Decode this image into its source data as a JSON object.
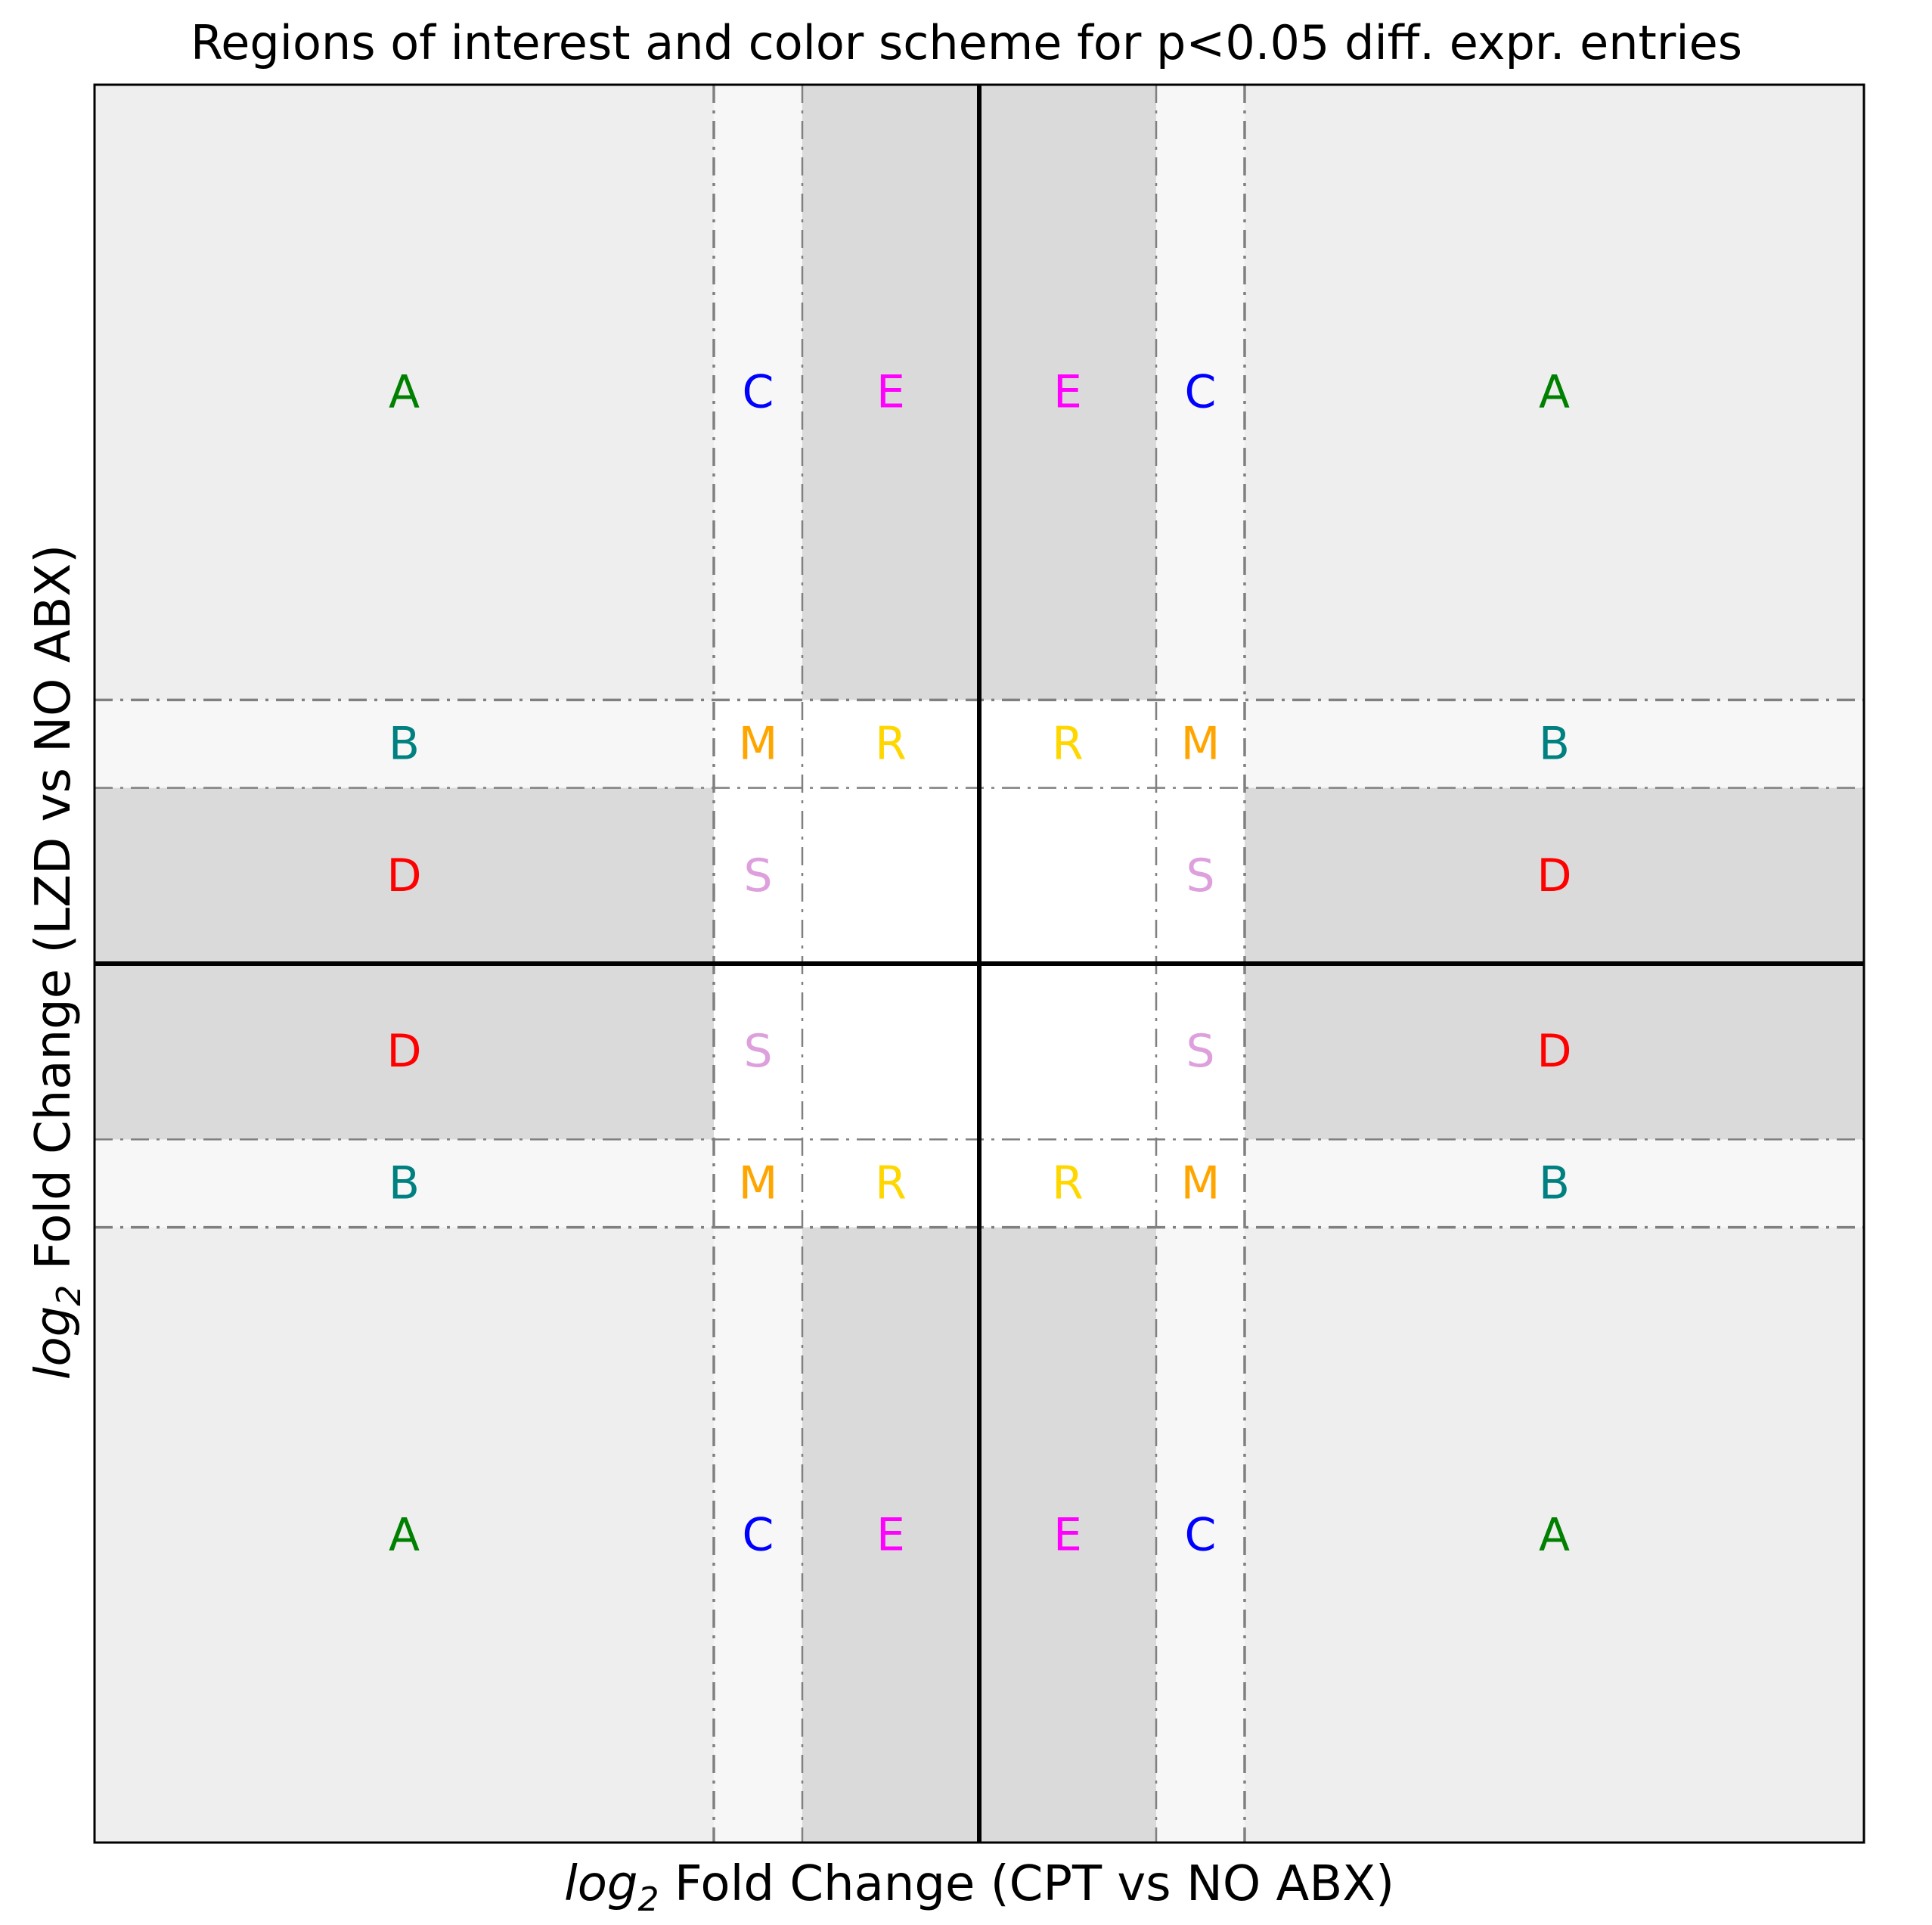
{
  "chart_data": {
    "type": "other",
    "title": "Regions of interest and color scheme for p<0.05 diff. expr. entries",
    "xlabel": {
      "prefix": "log",
      "subscript": "2",
      "suffix": " Fold Change (CPT vs NO ABX)"
    },
    "ylabel": {
      "prefix": "log",
      "subscript": "2",
      "suffix": " Fold Change (LZD vs NO ABX)"
    },
    "xlim": [
      -10,
      10
    ],
    "ylim": [
      -10,
      10
    ],
    "ticks_shown": false,
    "grid": false,
    "thresholds": [
      -3,
      -2,
      2,
      3
    ],
    "band_colors": {
      "light": "#eeeeee",
      "lighter": "#f7f7f7",
      "dark": "#dadada",
      "divider": "#808080",
      "axis": "#000000"
    },
    "regions": [
      {
        "x": [
          -10,
          -3
        ],
        "y": [
          3,
          10
        ],
        "fill": "#eeeeee"
      },
      {
        "x": [
          3,
          10
        ],
        "y": [
          3,
          10
        ],
        "fill": "#eeeeee"
      },
      {
        "x": [
          -10,
          -3
        ],
        "y": [
          -10,
          -3
        ],
        "fill": "#eeeeee"
      },
      {
        "x": [
          3,
          10
        ],
        "y": [
          -10,
          -3
        ],
        "fill": "#eeeeee"
      },
      {
        "x": [
          -3,
          -2
        ],
        "y": [
          3,
          10
        ],
        "fill": "#f7f7f7"
      },
      {
        "x": [
          2,
          3
        ],
        "y": [
          3,
          10
        ],
        "fill": "#f7f7f7"
      },
      {
        "x": [
          -3,
          -2
        ],
        "y": [
          -10,
          -3
        ],
        "fill": "#f7f7f7"
      },
      {
        "x": [
          2,
          3
        ],
        "y": [
          -10,
          -3
        ],
        "fill": "#f7f7f7"
      },
      {
        "x": [
          -10,
          -3
        ],
        "y": [
          2,
          3
        ],
        "fill": "#f7f7f7"
      },
      {
        "x": [
          3,
          10
        ],
        "y": [
          2,
          3
        ],
        "fill": "#f7f7f7"
      },
      {
        "x": [
          -10,
          -3
        ],
        "y": [
          -3,
          -2
        ],
        "fill": "#f7f7f7"
      },
      {
        "x": [
          3,
          10
        ],
        "y": [
          -3,
          -2
        ],
        "fill": "#f7f7f7"
      },
      {
        "x": [
          -2,
          2
        ],
        "y": [
          3,
          10
        ],
        "fill": "#dadada"
      },
      {
        "x": [
          -2,
          2
        ],
        "y": [
          -10,
          -3
        ],
        "fill": "#dadada"
      },
      {
        "x": [
          -10,
          -3
        ],
        "y": [
          -2,
          2
        ],
        "fill": "#dadada"
      },
      {
        "x": [
          3,
          10
        ],
        "y": [
          -2,
          2
        ],
        "fill": "#dadada"
      }
    ],
    "dividers": [
      {
        "orient": "v",
        "at": -3,
        "style": "dashdot",
        "width": 3.5
      },
      {
        "orient": "v",
        "at": 3,
        "style": "dashdot",
        "width": 3.5
      },
      {
        "orient": "v",
        "at": -2,
        "style": "dashdot",
        "width": 2.5
      },
      {
        "orient": "v",
        "at": 2,
        "style": "dashdot",
        "width": 2.5
      },
      {
        "orient": "h",
        "at": 3,
        "style": "dashdot",
        "width": 3.5
      },
      {
        "orient": "h",
        "at": -3,
        "style": "dashdot",
        "width": 3.5
      },
      {
        "orient": "h",
        "at": 2,
        "style": "dashdot",
        "width": 2.5
      },
      {
        "orient": "h",
        "at": -2,
        "style": "dashdot",
        "width": 2.5
      },
      {
        "orient": "v",
        "at": 0,
        "style": "solid",
        "width": 6
      },
      {
        "orient": "h",
        "at": 0,
        "style": "solid",
        "width": 6
      }
    ],
    "labels": [
      {
        "text": "A",
        "x": -6.5,
        "y": 6.5,
        "color": "#008000"
      },
      {
        "text": "C",
        "x": -2.5,
        "y": 6.5,
        "color": "#0000ff"
      },
      {
        "text": "E",
        "x": -1,
        "y": 6.5,
        "color": "#ff00ff"
      },
      {
        "text": "E",
        "x": 1,
        "y": 6.5,
        "color": "#ff00ff"
      },
      {
        "text": "C",
        "x": 2.5,
        "y": 6.5,
        "color": "#0000ff"
      },
      {
        "text": "A",
        "x": 6.5,
        "y": 6.5,
        "color": "#008000"
      },
      {
        "text": "B",
        "x": -6.5,
        "y": 2.5,
        "color": "#008080"
      },
      {
        "text": "M",
        "x": -2.5,
        "y": 2.5,
        "color": "#ffa500"
      },
      {
        "text": "R",
        "x": -1,
        "y": 2.5,
        "color": "#ffd700"
      },
      {
        "text": "R",
        "x": 1,
        "y": 2.5,
        "color": "#ffd700"
      },
      {
        "text": "M",
        "x": 2.5,
        "y": 2.5,
        "color": "#ffa500"
      },
      {
        "text": "B",
        "x": 6.5,
        "y": 2.5,
        "color": "#008080"
      },
      {
        "text": "D",
        "x": -6.5,
        "y": 1,
        "color": "#ff0000"
      },
      {
        "text": "S",
        "x": -2.5,
        "y": 1,
        "color": "#dda0dd"
      },
      {
        "text": "S",
        "x": 2.5,
        "y": 1,
        "color": "#dda0dd"
      },
      {
        "text": "D",
        "x": 6.5,
        "y": 1,
        "color": "#ff0000"
      },
      {
        "text": "D",
        "x": -6.5,
        "y": -1,
        "color": "#ff0000"
      },
      {
        "text": "S",
        "x": -2.5,
        "y": -1,
        "color": "#dda0dd"
      },
      {
        "text": "S",
        "x": 2.5,
        "y": -1,
        "color": "#dda0dd"
      },
      {
        "text": "D",
        "x": 6.5,
        "y": -1,
        "color": "#ff0000"
      },
      {
        "text": "B",
        "x": -6.5,
        "y": -2.5,
        "color": "#008080"
      },
      {
        "text": "M",
        "x": -2.5,
        "y": -2.5,
        "color": "#ffa500"
      },
      {
        "text": "R",
        "x": -1,
        "y": -2.5,
        "color": "#ffd700"
      },
      {
        "text": "R",
        "x": 1,
        "y": -2.5,
        "color": "#ffd700"
      },
      {
        "text": "M",
        "x": 2.5,
        "y": -2.5,
        "color": "#ffa500"
      },
      {
        "text": "B",
        "x": 6.5,
        "y": -2.5,
        "color": "#008080"
      },
      {
        "text": "A",
        "x": -6.5,
        "y": -6.5,
        "color": "#008000"
      },
      {
        "text": "C",
        "x": -2.5,
        "y": -6.5,
        "color": "#0000ff"
      },
      {
        "text": "E",
        "x": -1,
        "y": -6.5,
        "color": "#ff00ff"
      },
      {
        "text": "E",
        "x": 1,
        "y": -6.5,
        "color": "#ff00ff"
      },
      {
        "text": "C",
        "x": 2.5,
        "y": -6.5,
        "color": "#0000ff"
      },
      {
        "text": "A",
        "x": 6.5,
        "y": -6.5,
        "color": "#008000"
      }
    ]
  }
}
